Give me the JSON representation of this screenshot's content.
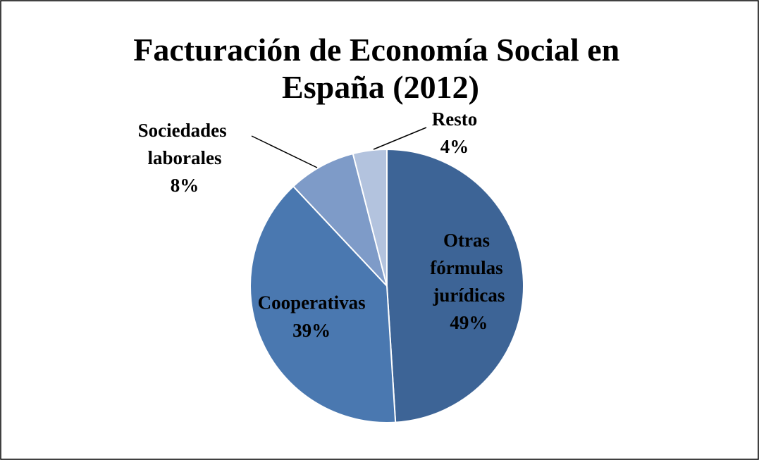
{
  "chart_data": {
    "type": "pie",
    "title": "Facturación de Economía Social en España (2012)",
    "categories": [
      "Otras fórmulas jurídicas",
      "Cooperativas",
      "Sociedades laborales",
      "Resto"
    ],
    "values": [
      49,
      39,
      8,
      4
    ],
    "value_labels": [
      "49%",
      "39%",
      "8%",
      "4%"
    ],
    "colors": [
      "#3d6496",
      "#4a78b0",
      "#7e9bc8",
      "#b3c3de"
    ]
  }
}
